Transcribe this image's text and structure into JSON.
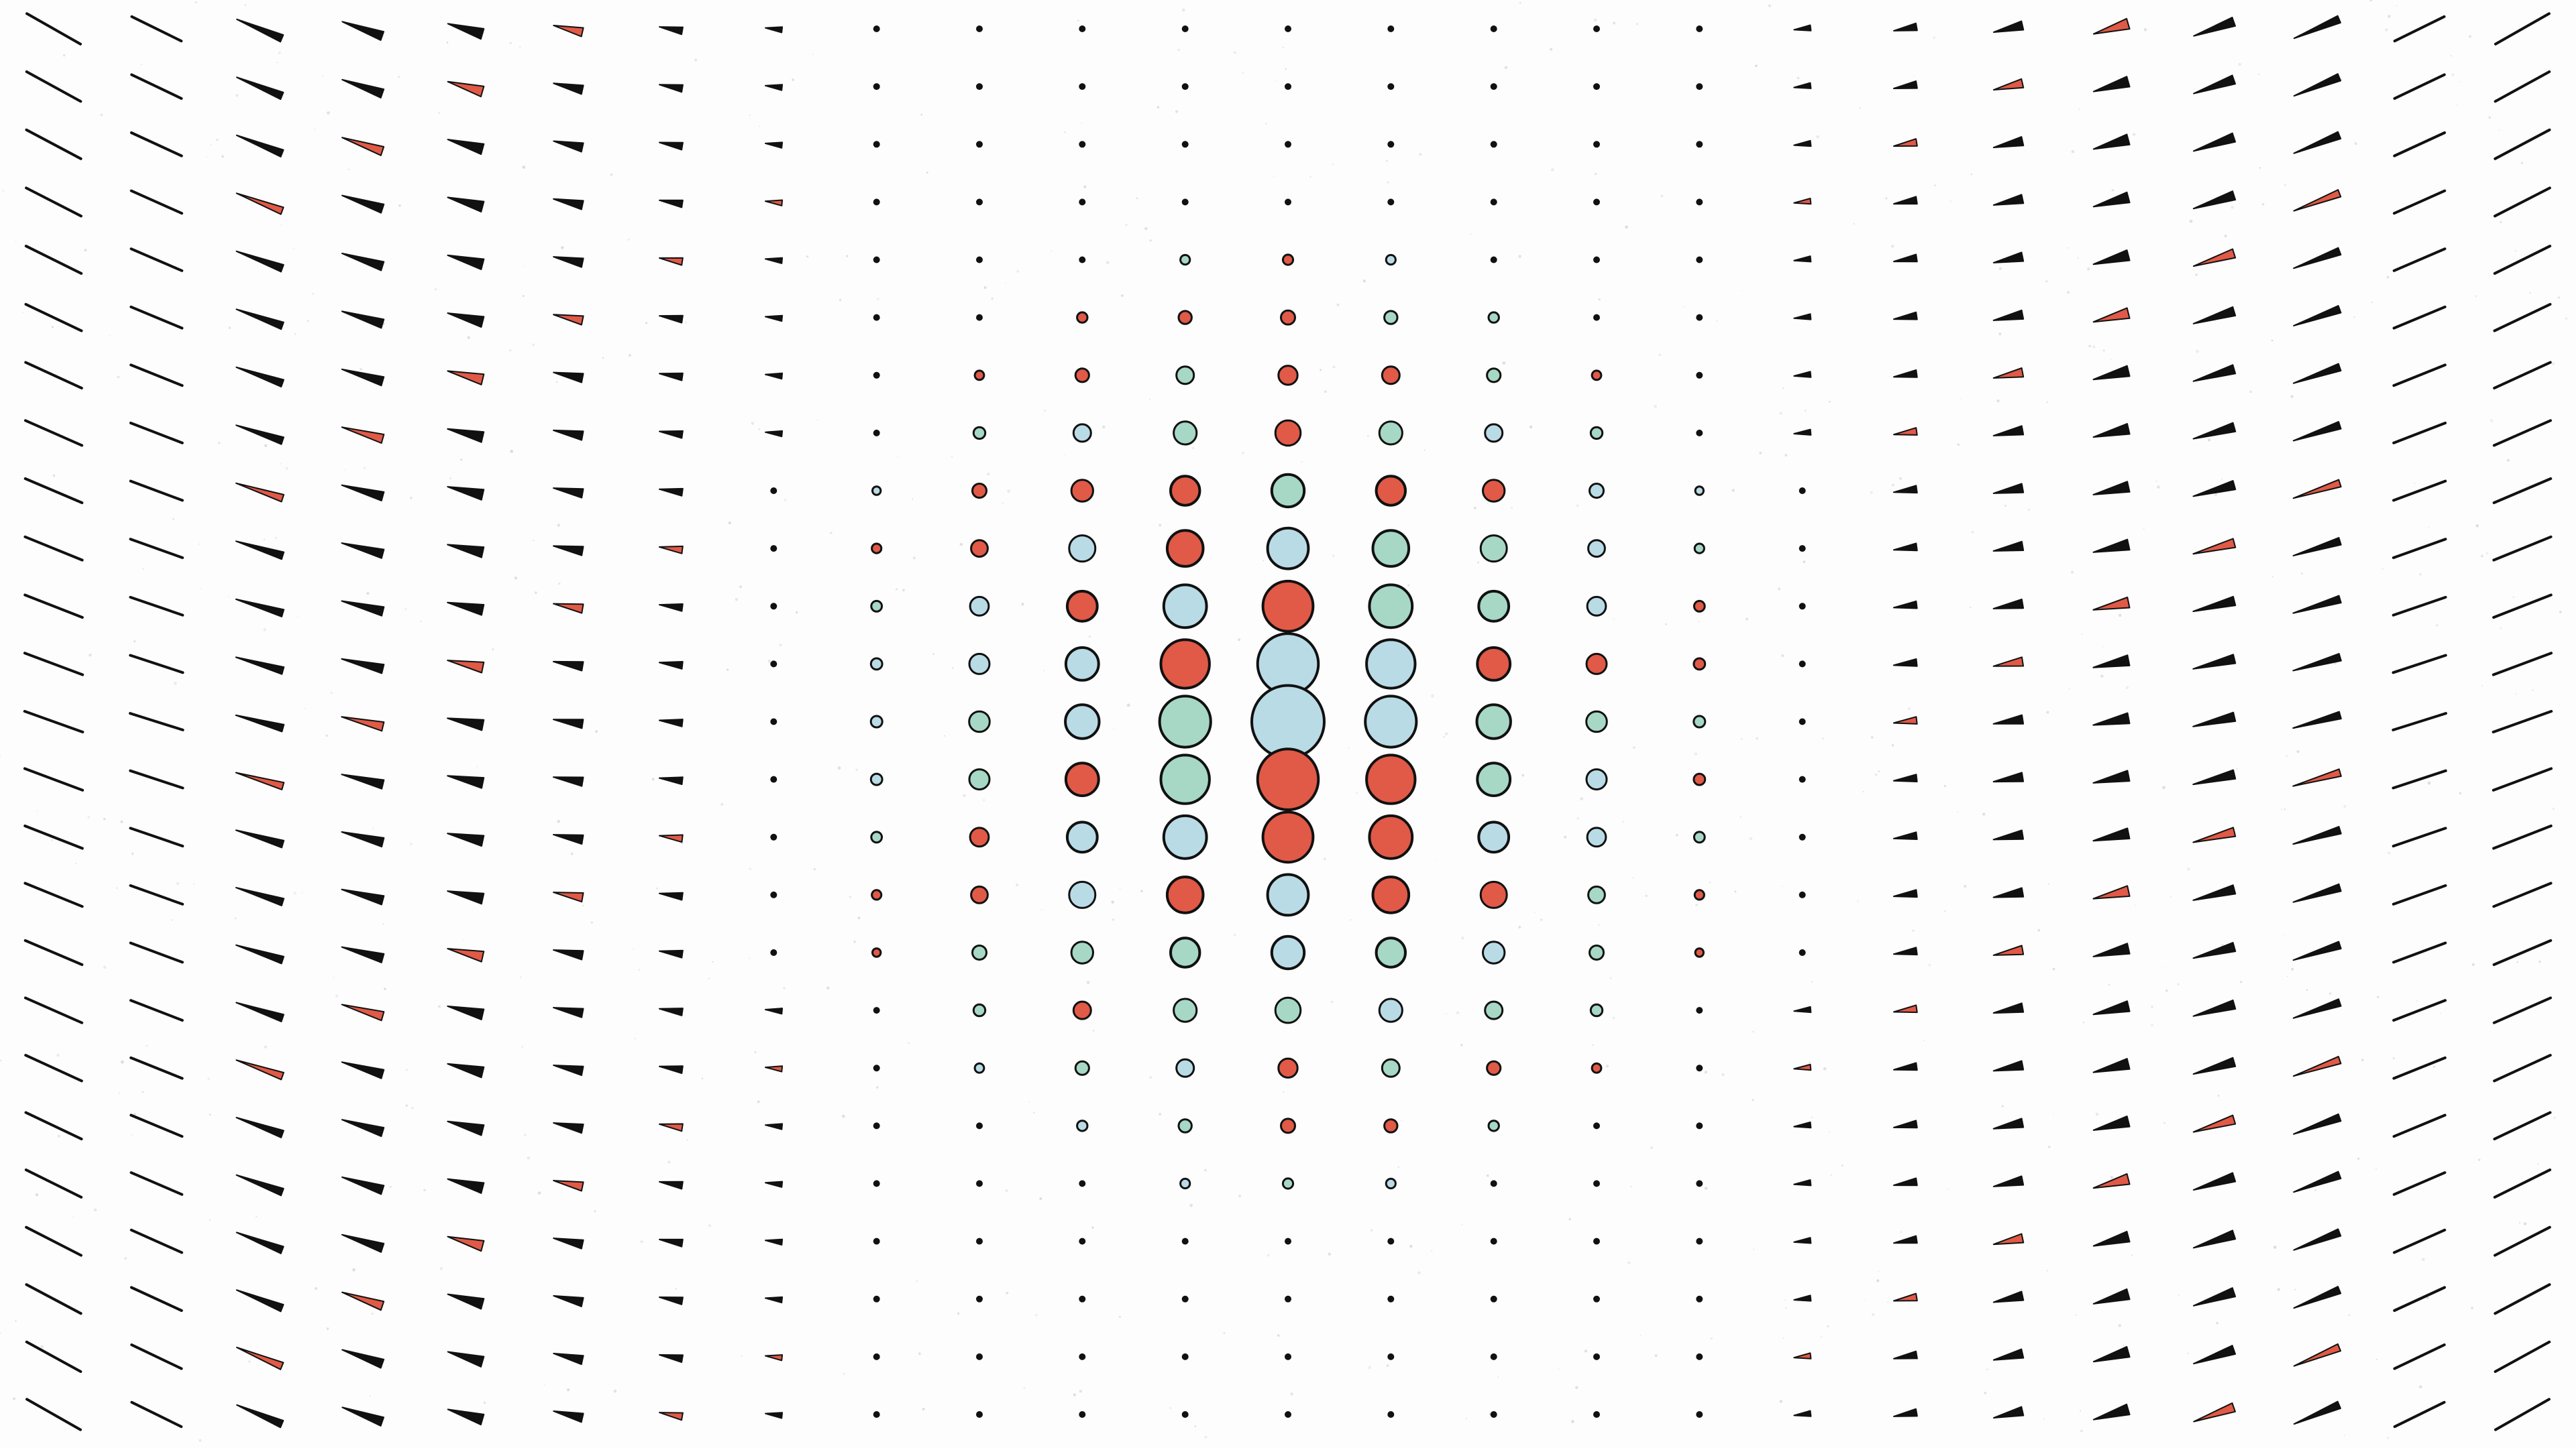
{
  "artwork": {
    "grid": {
      "columns": 25,
      "rows": 25
    },
    "colors": {
      "background": "#fdfdfd",
      "stroke": "#111111",
      "red": "#e05a47",
      "blue": "#b9dbe6",
      "green": "#a6d8c5",
      "speckle": "#cfcfcf"
    }
  }
}
